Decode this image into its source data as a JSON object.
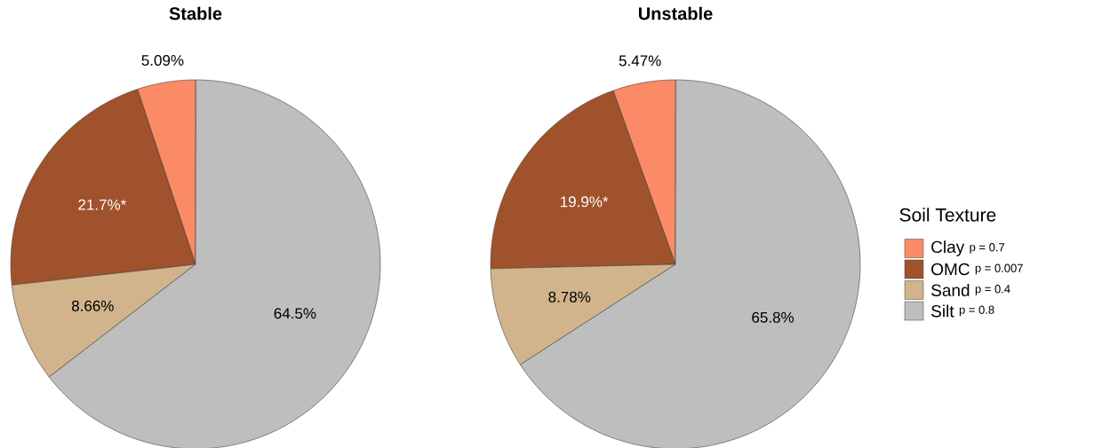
{
  "chart_data": [
    {
      "type": "pie",
      "title": "Stable",
      "categories": [
        null,
        null,
        null,
        null
      ],
      "values": [
        5.09,
        21.7,
        8.66,
        64.5
      ],
      "colors": [
        "#fb8a66",
        "#a0522d",
        "#d2b48c",
        "#bebebe"
      ],
      "value_labels": [
        "5.09%",
        "21.7%*",
        "8.66%",
        "64.5%"
      ],
      "legend": false
    },
    {
      "type": "pie",
      "title": "Unstable",
      "categories": [
        "Clay",
        "OMC",
        "Sand",
        "Silt"
      ],
      "values": [
        5.47,
        19.9,
        8.78,
        65.8
      ],
      "colors": [
        "#fb8a66",
        "#a0522d",
        "#d2b48c",
        "#bebebe"
      ],
      "value_labels": [
        "5.47%",
        "19.9%*",
        "8.78%",
        "65.8%"
      ],
      "legend": "right",
      "legend_title": "Soil Texture",
      "annotations": [
        "p = 0.7",
        "p = 0.007",
        "p = 0.4",
        "p = 0.8"
      ]
    }
  ]
}
